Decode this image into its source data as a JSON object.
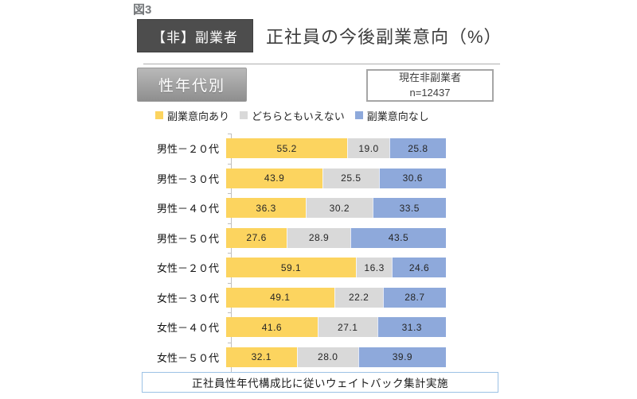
{
  "figure_label": "図3",
  "header": {
    "badge": "【非】副業者",
    "title": "正社員の今後副業意向（%）"
  },
  "subheader": {
    "tab_label": "性年代別",
    "sample_note": {
      "line1": "現在非副業者",
      "line2": "n=12437"
    }
  },
  "chart_data": {
    "type": "bar",
    "orientation": "horizontal",
    "stacked": true,
    "unit": "%",
    "xlim": [
      0,
      100
    ],
    "grid": false,
    "legend_position": "top",
    "categories": [
      "男性－２０代",
      "男性－３０代",
      "男性－４０代",
      "男性－５０代",
      "女性－２０代",
      "女性－３０代",
      "女性－４０代",
      "女性－５０代"
    ],
    "series": [
      {
        "name": "副業意向あり",
        "color": "#FCD45F",
        "values": [
          55.2,
          43.9,
          36.3,
          27.6,
          59.1,
          49.1,
          41.6,
          32.1
        ]
      },
      {
        "name": "どちらともいえない",
        "color": "#D9D9D9",
        "values": [
          19.0,
          25.5,
          30.2,
          28.9,
          16.3,
          22.2,
          27.1,
          28.0
        ]
      },
      {
        "name": "副業意向なし",
        "color": "#8EA9DB",
        "values": [
          25.8,
          30.6,
          33.5,
          43.5,
          24.6,
          28.7,
          31.3,
          39.9
        ]
      }
    ]
  },
  "footer": {
    "note": "正社員性年代構成比に従いウェイトバック集計実施"
  },
  "colors": {
    "series_yes": "#FCD45F",
    "series_neutral": "#D9D9D9",
    "series_no": "#8EA9DB",
    "badge_bg": "#4D4D4D",
    "axis": "#BFBFBF",
    "footer_border": "#9CC2E5"
  }
}
